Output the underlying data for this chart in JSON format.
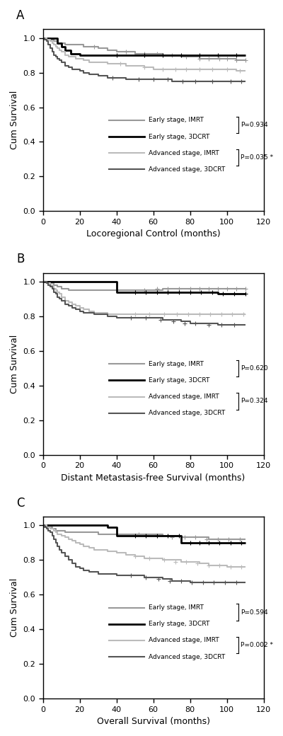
{
  "panels": [
    "A",
    "B",
    "C"
  ],
  "xlabels": [
    "Locoregional Control (months)",
    "Distant Metastasis-free Survival (months)",
    "Overall Survival (months)"
  ],
  "ylabel": "Cum Survival",
  "xlim": [
    0,
    120
  ],
  "ylim": [
    0.0,
    1.05
  ],
  "yticks": [
    0.0,
    0.2,
    0.4,
    0.6,
    0.8,
    1.0
  ],
  "xticks": [
    0,
    20,
    40,
    60,
    80,
    100,
    120
  ],
  "p_values": [
    [
      "P=0.934",
      "P=0.035 *"
    ],
    [
      "P=0.620",
      "P=0.324"
    ],
    [
      "P=0.594",
      "P=0.002 *"
    ]
  ],
  "legend_labels": [
    "Early stage, IMRT",
    "Early stage, 3DCRT",
    "Advanced stage, IMRT",
    "Advanced stage, 3DCRT"
  ],
  "colors": {
    "early_imrt": "#999999",
    "early_3dcrt": "#000000",
    "adv_imrt": "#bbbbbb",
    "adv_3dcrt": "#555555"
  },
  "linewidths": [
    1.5,
    2.0,
    1.5,
    1.5
  ],
  "curves": {
    "A": {
      "early_imrt": {
        "x": [
          0,
          1,
          2,
          3,
          4,
          5,
          6,
          7,
          8,
          9,
          10,
          12,
          14,
          16,
          18,
          20,
          22,
          25,
          28,
          30,
          35,
          40,
          45,
          50,
          55,
          60,
          65,
          70,
          75,
          80,
          85,
          90,
          95,
          100,
          105,
          110
        ],
        "y": [
          1.0,
          1.0,
          1.0,
          1.0,
          0.99,
          0.99,
          0.98,
          0.98,
          0.97,
          0.97,
          0.97,
          0.96,
          0.96,
          0.96,
          0.96,
          0.96,
          0.95,
          0.95,
          0.95,
          0.94,
          0.93,
          0.92,
          0.92,
          0.91,
          0.91,
          0.91,
          0.9,
          0.9,
          0.89,
          0.89,
          0.88,
          0.88,
          0.88,
          0.88,
          0.87,
          0.87
        ]
      },
      "early_3dcrt": {
        "x": [
          0,
          3,
          5,
          8,
          10,
          12,
          15,
          18,
          20,
          25,
          30,
          40,
          50,
          60,
          70,
          80,
          90,
          100,
          110
        ],
        "y": [
          1.0,
          1.0,
          1.0,
          0.97,
          0.95,
          0.93,
          0.91,
          0.91,
          0.9,
          0.9,
          0.9,
          0.9,
          0.9,
          0.9,
          0.9,
          0.9,
          0.9,
          0.9,
          0.9
        ]
      },
      "adv_imrt": {
        "x": [
          0,
          1,
          2,
          3,
          4,
          5,
          6,
          7,
          8,
          9,
          10,
          12,
          14,
          16,
          18,
          20,
          22,
          25,
          28,
          30,
          35,
          40,
          45,
          50,
          55,
          60,
          65,
          70,
          75,
          80,
          85,
          90,
          95,
          100,
          105,
          110
        ],
        "y": [
          1.0,
          1.0,
          0.99,
          0.99,
          0.98,
          0.97,
          0.96,
          0.95,
          0.94,
          0.93,
          0.92,
          0.9,
          0.89,
          0.89,
          0.88,
          0.88,
          0.87,
          0.86,
          0.86,
          0.86,
          0.85,
          0.85,
          0.84,
          0.84,
          0.83,
          0.82,
          0.82,
          0.82,
          0.82,
          0.82,
          0.82,
          0.82,
          0.82,
          0.82,
          0.81,
          0.81
        ]
      },
      "adv_3dcrt": {
        "x": [
          0,
          1,
          2,
          3,
          4,
          5,
          6,
          7,
          8,
          9,
          10,
          12,
          14,
          16,
          18,
          20,
          22,
          25,
          28,
          30,
          35,
          40,
          45,
          50,
          55,
          60,
          65,
          70,
          75,
          80,
          85,
          90,
          95,
          100,
          105,
          110
        ],
        "y": [
          1.0,
          0.99,
          0.98,
          0.96,
          0.94,
          0.92,
          0.9,
          0.89,
          0.88,
          0.87,
          0.86,
          0.84,
          0.83,
          0.82,
          0.82,
          0.81,
          0.8,
          0.79,
          0.79,
          0.78,
          0.77,
          0.77,
          0.76,
          0.76,
          0.76,
          0.76,
          0.76,
          0.75,
          0.75,
          0.75,
          0.75,
          0.75,
          0.75,
          0.75,
          0.75,
          0.75
        ]
      }
    },
    "B": {
      "early_imrt": {
        "x": [
          0,
          1,
          2,
          3,
          4,
          5,
          6,
          7,
          8,
          9,
          10,
          12,
          14,
          16,
          18,
          20,
          25,
          30,
          40,
          50,
          60,
          65,
          70,
          75,
          80,
          85,
          90,
          95,
          100,
          105,
          110
        ],
        "y": [
          1.0,
          1.0,
          1.0,
          1.0,
          0.99,
          0.99,
          0.98,
          0.98,
          0.97,
          0.97,
          0.96,
          0.96,
          0.95,
          0.95,
          0.95,
          0.95,
          0.95,
          0.95,
          0.95,
          0.95,
          0.95,
          0.96,
          0.96,
          0.96,
          0.96,
          0.96,
          0.96,
          0.96,
          0.96,
          0.96,
          0.96
        ]
      },
      "early_3dcrt": {
        "x": [
          0,
          5,
          10,
          15,
          20,
          25,
          30,
          35,
          40,
          50,
          55,
          60,
          65,
          70,
          75,
          80,
          85,
          90,
          95,
          100,
          105,
          110
        ],
        "y": [
          1.0,
          1.0,
          1.0,
          1.0,
          1.0,
          1.0,
          1.0,
          1.0,
          0.94,
          0.94,
          0.94,
          0.94,
          0.94,
          0.94,
          0.94,
          0.94,
          0.94,
          0.94,
          0.93,
          0.93,
          0.93,
          0.93
        ]
      },
      "adv_imrt": {
        "x": [
          0,
          1,
          2,
          3,
          4,
          5,
          6,
          7,
          8,
          9,
          10,
          12,
          14,
          16,
          18,
          20,
          22,
          25,
          28,
          30,
          35,
          40,
          45,
          50,
          55,
          60,
          65,
          70,
          75,
          80,
          85,
          90,
          95,
          100,
          105,
          110
        ],
        "y": [
          1.0,
          1.0,
          0.99,
          0.99,
          0.98,
          0.97,
          0.96,
          0.95,
          0.94,
          0.93,
          0.91,
          0.89,
          0.88,
          0.87,
          0.86,
          0.85,
          0.84,
          0.83,
          0.82,
          0.82,
          0.81,
          0.81,
          0.81,
          0.81,
          0.81,
          0.81,
          0.81,
          0.81,
          0.81,
          0.81,
          0.81,
          0.81,
          0.81,
          0.81,
          0.81,
          0.81
        ]
      },
      "adv_3dcrt": {
        "x": [
          0,
          1,
          2,
          3,
          4,
          5,
          6,
          7,
          8,
          9,
          10,
          12,
          14,
          16,
          18,
          20,
          22,
          25,
          28,
          30,
          35,
          40,
          45,
          50,
          55,
          60,
          65,
          70,
          75,
          80,
          85,
          90,
          95,
          100,
          105,
          110
        ],
        "y": [
          1.0,
          1.0,
          0.99,
          0.98,
          0.97,
          0.96,
          0.94,
          0.93,
          0.91,
          0.9,
          0.89,
          0.87,
          0.86,
          0.85,
          0.84,
          0.83,
          0.82,
          0.82,
          0.81,
          0.81,
          0.8,
          0.79,
          0.79,
          0.79,
          0.79,
          0.79,
          0.78,
          0.78,
          0.77,
          0.76,
          0.76,
          0.76,
          0.75,
          0.75,
          0.75,
          0.75
        ]
      }
    },
    "C": {
      "early_imrt": {
        "x": [
          0,
          1,
          2,
          3,
          4,
          5,
          6,
          7,
          8,
          9,
          10,
          12,
          14,
          16,
          18,
          20,
          22,
          25,
          28,
          30,
          35,
          40,
          45,
          50,
          55,
          60,
          65,
          70,
          75,
          80,
          85,
          90,
          95,
          100,
          105,
          110
        ],
        "y": [
          1.0,
          1.0,
          1.0,
          0.99,
          0.99,
          0.98,
          0.98,
          0.97,
          0.97,
          0.97,
          0.97,
          0.96,
          0.96,
          0.96,
          0.96,
          0.96,
          0.96,
          0.96,
          0.96,
          0.95,
          0.95,
          0.95,
          0.95,
          0.95,
          0.95,
          0.95,
          0.94,
          0.94,
          0.93,
          0.93,
          0.93,
          0.92,
          0.92,
          0.92,
          0.92,
          0.92
        ]
      },
      "early_3dcrt": {
        "x": [
          0,
          5,
          10,
          15,
          20,
          25,
          28,
          30,
          35,
          40,
          45,
          50,
          55,
          60,
          65,
          70,
          75,
          80,
          85,
          90,
          95,
          100,
          105,
          110
        ],
        "y": [
          1.0,
          1.0,
          1.0,
          1.0,
          1.0,
          1.0,
          1.0,
          1.0,
          0.99,
          0.94,
          0.94,
          0.94,
          0.94,
          0.94,
          0.94,
          0.94,
          0.9,
          0.9,
          0.9,
          0.9,
          0.9,
          0.9,
          0.9,
          0.9
        ]
      },
      "adv_imrt": {
        "x": [
          0,
          1,
          2,
          3,
          4,
          5,
          6,
          7,
          8,
          9,
          10,
          12,
          14,
          16,
          18,
          20,
          22,
          25,
          28,
          30,
          35,
          40,
          45,
          50,
          55,
          60,
          65,
          70,
          75,
          80,
          85,
          90,
          95,
          100,
          105,
          110
        ],
        "y": [
          1.0,
          1.0,
          0.99,
          0.99,
          0.98,
          0.98,
          0.97,
          0.96,
          0.95,
          0.95,
          0.94,
          0.93,
          0.92,
          0.91,
          0.9,
          0.89,
          0.88,
          0.87,
          0.86,
          0.86,
          0.85,
          0.84,
          0.83,
          0.82,
          0.81,
          0.81,
          0.8,
          0.8,
          0.79,
          0.79,
          0.78,
          0.77,
          0.77,
          0.76,
          0.76,
          0.76
        ]
      },
      "adv_3dcrt": {
        "x": [
          0,
          1,
          2,
          3,
          4,
          5,
          6,
          7,
          8,
          9,
          10,
          12,
          14,
          16,
          18,
          20,
          22,
          25,
          28,
          30,
          35,
          40,
          45,
          50,
          55,
          60,
          65,
          70,
          75,
          80,
          85,
          90,
          95,
          100,
          105,
          110
        ],
        "y": [
          1.0,
          0.99,
          0.98,
          0.97,
          0.96,
          0.94,
          0.92,
          0.9,
          0.88,
          0.86,
          0.84,
          0.82,
          0.8,
          0.78,
          0.76,
          0.75,
          0.74,
          0.73,
          0.73,
          0.72,
          0.72,
          0.71,
          0.71,
          0.71,
          0.7,
          0.7,
          0.69,
          0.68,
          0.68,
          0.67,
          0.67,
          0.67,
          0.67,
          0.67,
          0.67,
          0.67
        ]
      }
    }
  },
  "censoring": {
    "A": {
      "early_imrt": {
        "x": [
          28,
          45,
          55,
          62,
          70,
          78,
          85,
          90,
          96,
          100,
          105,
          110
        ],
        "y": [
          0.95,
          0.92,
          0.91,
          0.91,
          0.9,
          0.89,
          0.88,
          0.88,
          0.88,
          0.88,
          0.87,
          0.87
        ]
      },
      "early_3dcrt": {
        "x": [
          40,
          55,
          65,
          75,
          85,
          95,
          105
        ],
        "y": [
          0.9,
          0.9,
          0.9,
          0.9,
          0.9,
          0.9,
          0.9
        ]
      },
      "adv_imrt": {
        "x": [
          42,
          55,
          65,
          72,
          78,
          85,
          92,
          100,
          107
        ],
        "y": [
          0.85,
          0.83,
          0.82,
          0.82,
          0.82,
          0.82,
          0.82,
          0.82,
          0.81
        ]
      },
      "adv_3dcrt": {
        "x": [
          38,
          52,
          60,
          68,
          76,
          83,
          92,
          102,
          108
        ],
        "y": [
          0.77,
          0.76,
          0.76,
          0.76,
          0.75,
          0.75,
          0.75,
          0.75,
          0.75
        ]
      }
    },
    "B": {
      "early_imrt": {
        "x": [
          55,
          62,
          68,
          74,
          80,
          85,
          90,
          95,
          100,
          105,
          110
        ],
        "y": [
          0.95,
          0.96,
          0.96,
          0.96,
          0.96,
          0.96,
          0.96,
          0.96,
          0.96,
          0.96,
          0.96
        ]
      },
      "early_3dcrt": {
        "x": [
          50,
          56,
          62,
          68,
          74,
          80,
          86,
          92,
          98,
          104,
          110
        ],
        "y": [
          0.94,
          0.94,
          0.94,
          0.94,
          0.94,
          0.94,
          0.94,
          0.94,
          0.93,
          0.93,
          0.93
        ]
      },
      "adv_imrt": {
        "x": [
          50,
          58,
          66,
          73,
          79,
          85,
          91,
          97,
          103,
          109
        ],
        "y": [
          0.81,
          0.81,
          0.81,
          0.81,
          0.81,
          0.81,
          0.81,
          0.81,
          0.81,
          0.81
        ]
      },
      "adv_3dcrt": {
        "x": [
          48,
          56,
          64,
          71,
          77,
          83,
          90,
          97,
          104
        ],
        "y": [
          0.79,
          0.79,
          0.78,
          0.77,
          0.76,
          0.76,
          0.75,
          0.75,
          0.75
        ]
      }
    },
    "C": {
      "early_imrt": {
        "x": [
          52,
          62,
          70,
          77,
          83,
          89,
          95,
          101,
          107
        ],
        "y": [
          0.95,
          0.94,
          0.93,
          0.93,
          0.93,
          0.92,
          0.92,
          0.92,
          0.92
        ]
      },
      "early_3dcrt": {
        "x": [
          50,
          56,
          62,
          68,
          74,
          80,
          85,
          90,
          96,
          102,
          108
        ],
        "y": [
          0.94,
          0.94,
          0.94,
          0.94,
          0.94,
          0.9,
          0.9,
          0.9,
          0.9,
          0.9,
          0.9
        ]
      },
      "adv_imrt": {
        "x": [
          50,
          58,
          66,
          72,
          78,
          84,
          90,
          96,
          102,
          108
        ],
        "y": [
          0.82,
          0.81,
          0.8,
          0.79,
          0.79,
          0.78,
          0.77,
          0.77,
          0.76,
          0.76
        ]
      },
      "adv_3dcrt": {
        "x": [
          48,
          56,
          63,
          69,
          75,
          81,
          87,
          93,
          99,
          105
        ],
        "y": [
          0.71,
          0.7,
          0.69,
          0.68,
          0.68,
          0.67,
          0.67,
          0.67,
          0.67,
          0.67
        ]
      }
    }
  }
}
